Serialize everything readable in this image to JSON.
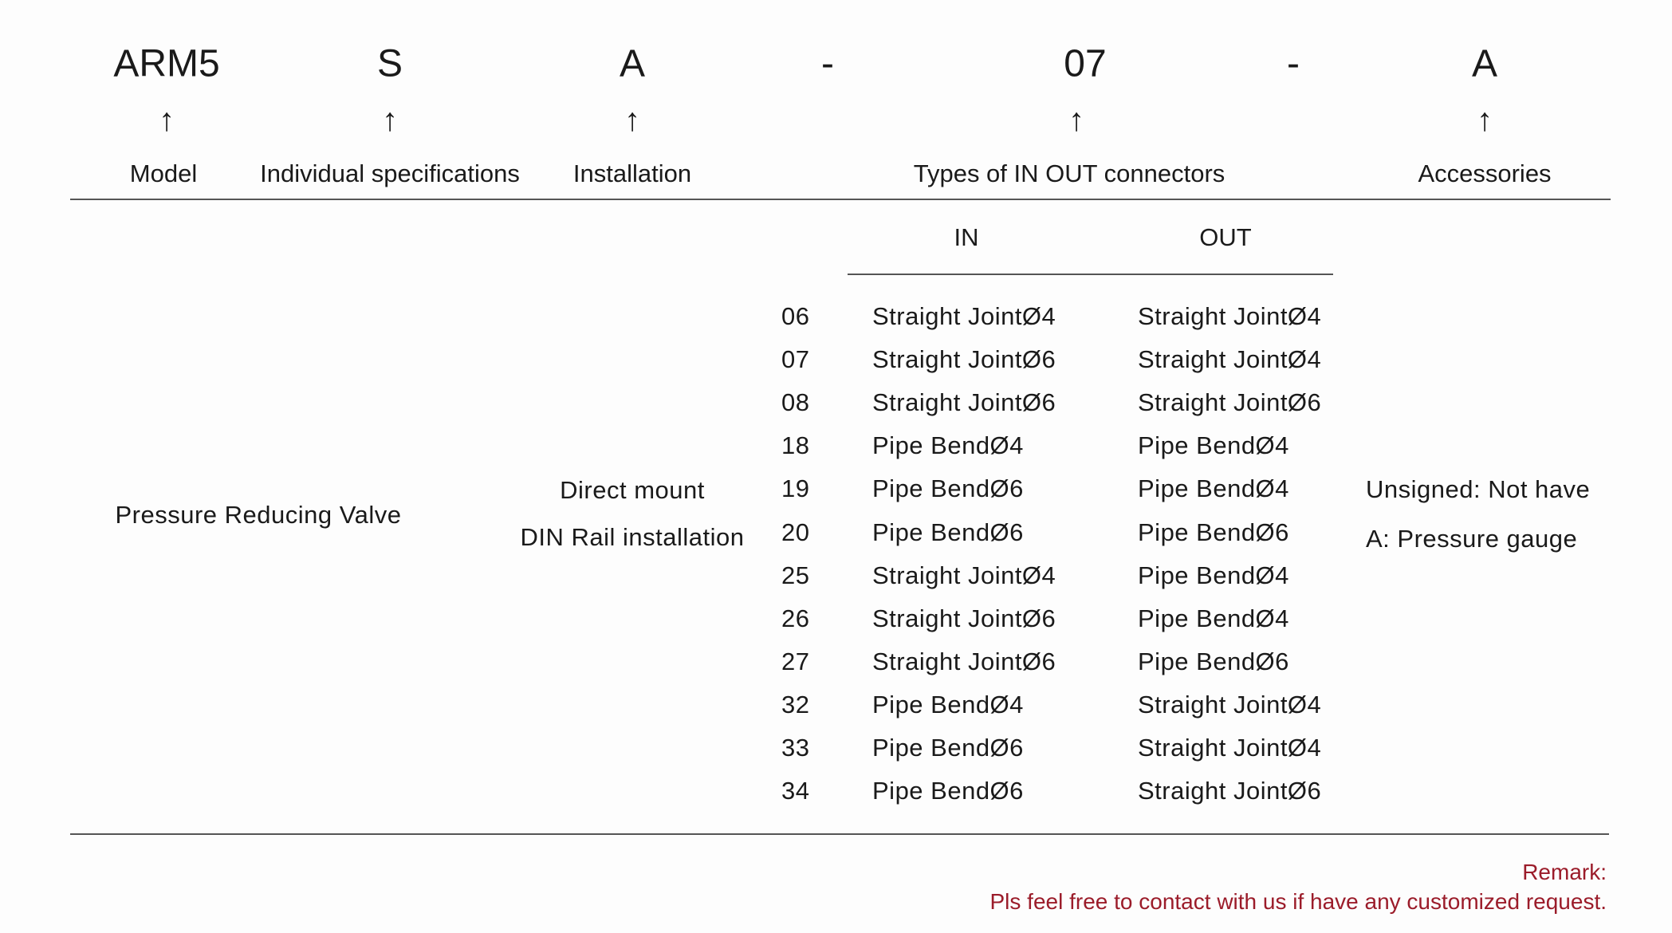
{
  "code_parts": [
    "ARM5",
    "S",
    "A",
    "-",
    "07",
    "-",
    "A"
  ],
  "arrow_glyph": "↑",
  "labels": {
    "model": "Model",
    "individual": "Individual specifications",
    "installation": "Installation",
    "connectors": "Types of IN OUT connectors",
    "accessories": "Accessories"
  },
  "connector_headers": {
    "in": "IN",
    "out": "OUT"
  },
  "model_name": "Pressure Reducing Valve",
  "installation_options": [
    "Direct mount",
    "DIN Rail installation"
  ],
  "connector_rows": [
    {
      "code": "06",
      "in": "Straight JointØ4",
      "out": "Straight JointØ4"
    },
    {
      "code": "07",
      "in": "Straight JointØ6",
      "out": "Straight JointØ4"
    },
    {
      "code": "08",
      "in": "Straight JointØ6",
      "out": "Straight JointØ6"
    },
    {
      "code": "18",
      "in": "Pipe BendØ4",
      "out": "Pipe BendØ4"
    },
    {
      "code": "19",
      "in": "Pipe BendØ6",
      "out": "Pipe BendØ4"
    },
    {
      "code": "20",
      "in": "Pipe BendØ6",
      "out": "Pipe BendØ6"
    },
    {
      "code": "25",
      "in": "Straight JointØ4",
      "out": "Pipe BendØ4"
    },
    {
      "code": "26",
      "in": "Straight JointØ6",
      "out": "Pipe BendØ4"
    },
    {
      "code": "27",
      "in": "Straight JointØ6",
      "out": "Pipe BendØ6"
    },
    {
      "code": "32",
      "in": "Pipe BendØ4",
      "out": "Straight JointØ4"
    },
    {
      "code": "33",
      "in": "Pipe BendØ6",
      "out": "Straight JointØ4"
    },
    {
      "code": "34",
      "in": "Pipe BendØ6",
      "out": "Straight JointØ6"
    }
  ],
  "accessory_options": [
    "Unsigned: Not have",
    "A: Pressure gauge"
  ],
  "remark": {
    "title": "Remark:",
    "text": "Pls feel free to contact with us if have any customized request."
  },
  "colors": {
    "remark": "#9b1c2a",
    "text": "#1a1a1a",
    "rule": "#555555"
  }
}
